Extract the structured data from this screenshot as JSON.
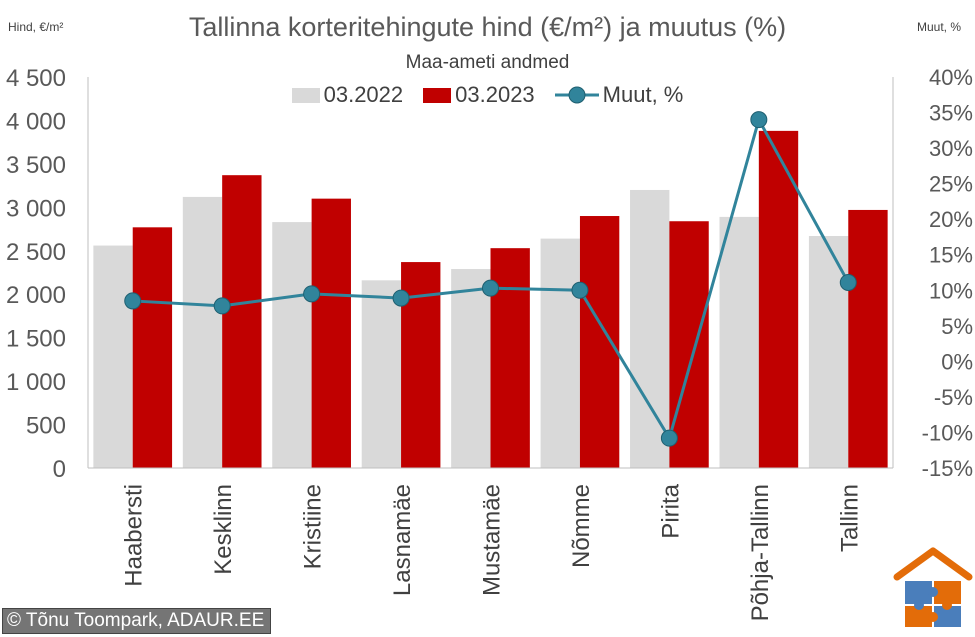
{
  "corner_left": "Hind, €/m²",
  "corner_right": "Muut, %",
  "credit": "© Tõnu Toompark, ADAUR.EE",
  "colors": {
    "bar_2022": "#d9d9d9",
    "bar_2023": "#c00000",
    "line": "#31849b"
  },
  "icons": {
    "logo": "house-puzzle-logo"
  },
  "chart_data": {
    "type": "bar",
    "title": "Tallinna korteritehingute hind (€/m²) ja muutus (%)",
    "subtitle": "Maa-ameti andmed",
    "categories": [
      "Haabersti",
      "Kesklinn",
      "Kristiine",
      "Lasnamäe",
      "Mustamäe",
      "Nõmme",
      "Pirita",
      "Põhja-Tallinn",
      "Tallinn"
    ],
    "series": [
      {
        "name": "03.2022",
        "values": [
          2560,
          3120,
          2830,
          2160,
          2290,
          2640,
          3200,
          2890,
          2670
        ]
      },
      {
        "name": "03.2023",
        "values": [
          2770,
          3370,
          3100,
          2370,
          2530,
          2900,
          2840,
          3880,
          2970
        ]
      }
    ],
    "line_series": {
      "name": "Muut, %",
      "values": [
        8.5,
        7.8,
        9.5,
        8.9,
        10.3,
        10.0,
        -10.8,
        34.0,
        11.1
      ]
    },
    "y_left": {
      "ylim": [
        0,
        4500
      ],
      "ticks": [
        "0",
        "500",
        "1 000",
        "1 500",
        "2 000",
        "2 500",
        "3 000",
        "3 500",
        "4 000",
        "4 500"
      ]
    },
    "y_right": {
      "ylim": [
        -15,
        40
      ],
      "ticks": [
        "-15%",
        "-10%",
        "-5%",
        "0%",
        "5%",
        "10%",
        "15%",
        "20%",
        "25%",
        "30%",
        "35%",
        "40%"
      ]
    },
    "legend_position": "top",
    "grid": false
  }
}
